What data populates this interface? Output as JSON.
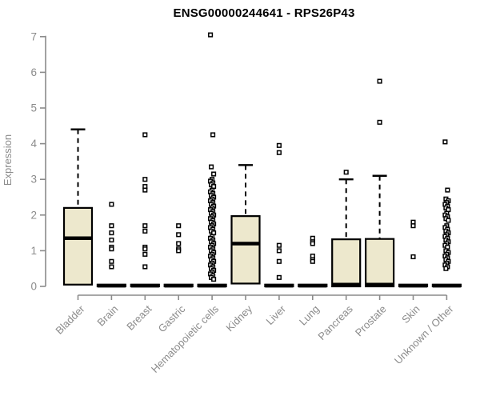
{
  "window": {
    "background": "#ffffff"
  },
  "chart_data": {
    "type": "boxplot",
    "title": "ENSG00000244641 - RPS26P43",
    "xlabel": "",
    "ylabel": "Expression",
    "ylim": [
      0,
      7
    ],
    "yticks": [
      0,
      1,
      2,
      3,
      4,
      5,
      6,
      7
    ],
    "grid": false,
    "legend": "none",
    "colors": {
      "box_fill": "#ede8cd",
      "box_stroke": "#000000",
      "median": "#000000",
      "whisker": "#000000",
      "outlier_stroke": "#000000",
      "outlier_fill": "#ffffff",
      "axis": "#8b8b8b",
      "tick_label": "#8b8b8b",
      "title": "#000000"
    },
    "categories": [
      "Bladder",
      "Brain",
      "Breast",
      "Gastric",
      "Hematopoietic cells",
      "Kidney",
      "Liver",
      "Lung",
      "Pancreas",
      "Prostate",
      "Skin",
      "Unknown / Other"
    ],
    "series": [
      {
        "category": "Bladder",
        "q1": 0.05,
        "median": 1.35,
        "q3": 2.2,
        "whisker_low": 0.05,
        "whisker_high": 4.4,
        "outliers": []
      },
      {
        "category": "Brain",
        "q1": 0,
        "median": 0.02,
        "q3": 0.05,
        "whisker_low": 0,
        "whisker_high": 0.05,
        "outliers": [
          2.3,
          1.7,
          1.5,
          1.3,
          1.1,
          1.05,
          0.7,
          0.55
        ]
      },
      {
        "category": "Breast",
        "q1": 0,
        "median": 0.02,
        "q3": 0.05,
        "whisker_low": 0,
        "whisker_high": 0.05,
        "outliers": [
          4.25,
          3.0,
          2.8,
          2.7,
          1.7,
          1.55,
          1.1,
          1.05,
          0.9,
          0.55
        ]
      },
      {
        "category": "Gastric",
        "q1": 0,
        "median": 0.02,
        "q3": 0.05,
        "whisker_low": 0,
        "whisker_high": 0.05,
        "outliers": [
          1.7,
          1.45,
          1.2,
          1.05,
          1.0
        ]
      },
      {
        "category": "Hematopoietic cells",
        "q1": 0,
        "median": 0.02,
        "q3": 0.05,
        "whisker_low": 0,
        "whisker_high": 0.05,
        "outliers": [
          7.05,
          4.25,
          3.35,
          3.15,
          3.0,
          2.95,
          2.9,
          2.85,
          2.8,
          2.7,
          2.65,
          2.6,
          2.55,
          2.5,
          2.45,
          2.4,
          2.35,
          2.3,
          2.25,
          2.2,
          2.15,
          2.1,
          2.05,
          2.0,
          1.95,
          1.9,
          1.85,
          1.8,
          1.75,
          1.7,
          1.65,
          1.6,
          1.55,
          1.5,
          1.4,
          1.35,
          1.3,
          1.25,
          1.2,
          1.15,
          1.1,
          1.05,
          1.0,
          0.95,
          0.9,
          0.85,
          0.8,
          0.75,
          0.7,
          0.65,
          0.6,
          0.55,
          0.5,
          0.45,
          0.4,
          0.35,
          0.3,
          0.25,
          0.2
        ]
      },
      {
        "category": "Kidney",
        "q1": 0.08,
        "median": 1.2,
        "q3": 1.97,
        "whisker_low": 0.08,
        "whisker_high": 3.4,
        "outliers": []
      },
      {
        "category": "Liver",
        "q1": 0,
        "median": 0.02,
        "q3": 0.05,
        "whisker_low": 0,
        "whisker_high": 0.05,
        "outliers": [
          3.95,
          3.75,
          1.15,
          1.0,
          0.7,
          0.25
        ]
      },
      {
        "category": "Lung",
        "q1": 0,
        "median": 0.02,
        "q3": 0.05,
        "whisker_low": 0,
        "whisker_high": 0.05,
        "outliers": [
          1.35,
          1.25,
          1.2,
          0.85,
          0.75,
          0.7
        ]
      },
      {
        "category": "Pancreas",
        "q1": 0,
        "median": 0.05,
        "q3": 1.32,
        "whisker_low": 0,
        "whisker_high": 3.0,
        "outliers": [
          3.2
        ]
      },
      {
        "category": "Prostate",
        "q1": 0,
        "median": 0.05,
        "q3": 1.33,
        "whisker_low": 0,
        "whisker_high": 3.1,
        "outliers": [
          5.75,
          4.6
        ]
      },
      {
        "category": "Skin",
        "q1": 0,
        "median": 0.02,
        "q3": 0.05,
        "whisker_low": 0,
        "whisker_high": 0.05,
        "outliers": [
          1.8,
          1.7,
          0.83
        ]
      },
      {
        "category": "Unknown / Other",
        "q1": 0,
        "median": 0.02,
        "q3": 0.05,
        "whisker_low": 0,
        "whisker_high": 0.05,
        "outliers": [
          4.05,
          2.7,
          2.45,
          2.4,
          2.35,
          2.3,
          2.25,
          2.2,
          2.15,
          2.05,
          2.0,
          1.95,
          1.9,
          1.85,
          1.7,
          1.65,
          1.6,
          1.55,
          1.5,
          1.45,
          1.4,
          1.35,
          1.3,
          1.25,
          1.2,
          1.15,
          1.1,
          1.0,
          0.95,
          0.9,
          0.85,
          0.8,
          0.75,
          0.7,
          0.65,
          0.6,
          0.55,
          0.5
        ]
      }
    ]
  }
}
